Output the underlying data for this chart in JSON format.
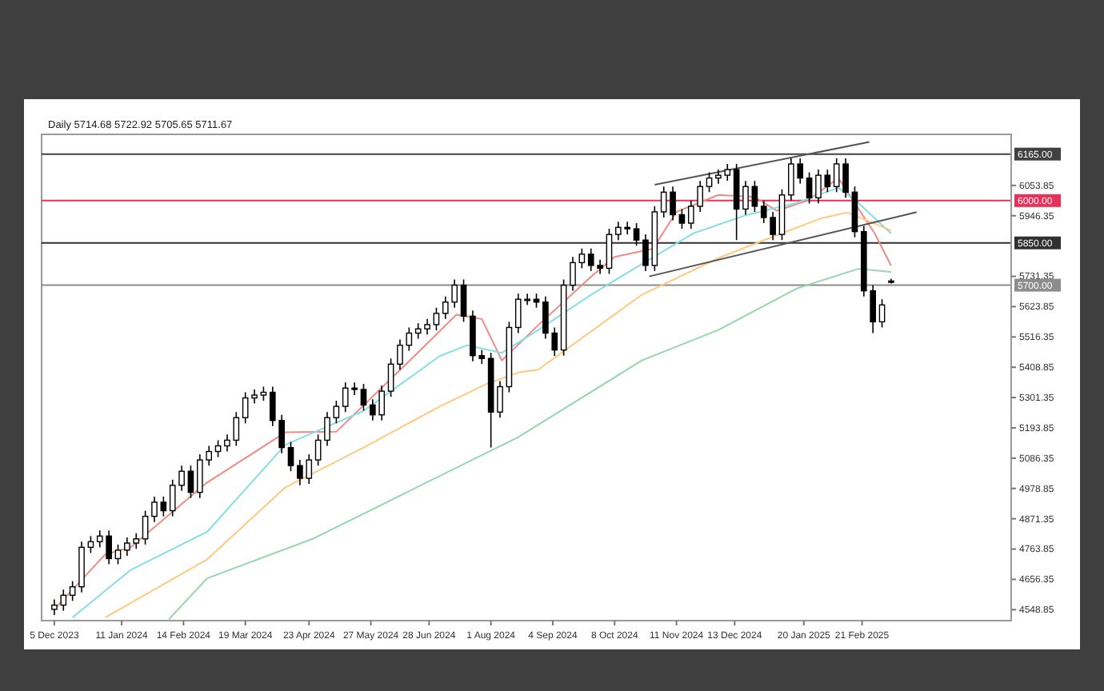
{
  "chart_data": {
    "type": "candlestick",
    "title": "Daily 5714.68 5722.92 5705.65 5711.67",
    "color": "#000000",
    "x": [
      "2023-12-05",
      "2023-12-10",
      "2023-12-15",
      "2023-12-20",
      "2023-12-25",
      "2023-12-30",
      "2024-01-04",
      "2024-01-09",
      "2024-01-14",
      "2024-01-19",
      "2024-01-24",
      "2024-01-29",
      "2024-02-03",
      "2024-02-08",
      "2024-02-13",
      "2024-02-18",
      "2024-02-23",
      "2024-02-28",
      "2024-03-04",
      "2024-03-09",
      "2024-03-14",
      "2024-03-19",
      "2024-03-24",
      "2024-03-29",
      "2024-04-03",
      "2024-04-08",
      "2024-04-13",
      "2024-04-18",
      "2024-04-23",
      "2024-04-28",
      "2024-05-03",
      "2024-05-08",
      "2024-05-13",
      "2024-05-18",
      "2024-05-23",
      "2024-05-28",
      "2024-06-02",
      "2024-06-07",
      "2024-06-12",
      "2024-06-17",
      "2024-06-22",
      "2024-06-27",
      "2024-07-02",
      "2024-07-07",
      "2024-07-12",
      "2024-07-17",
      "2024-07-22",
      "2024-07-27",
      "2024-08-01",
      "2024-08-06",
      "2024-08-11",
      "2024-08-16",
      "2024-08-21",
      "2024-08-26",
      "2024-08-31",
      "2024-09-05",
      "2024-09-10",
      "2024-09-15",
      "2024-09-20",
      "2024-09-25",
      "2024-09-30",
      "2024-10-05",
      "2024-10-10",
      "2024-10-15",
      "2024-10-20",
      "2024-10-25",
      "2024-10-30",
      "2024-11-04",
      "2024-11-09",
      "2024-11-14",
      "2024-11-19",
      "2024-11-24",
      "2024-11-29",
      "2024-12-04",
      "2024-12-09",
      "2024-12-14",
      "2024-12-19",
      "2024-12-24",
      "2024-12-29",
      "2025-01-03",
      "2025-01-08",
      "2025-01-13",
      "2025-01-18",
      "2025-01-23",
      "2025-01-28",
      "2025-02-02",
      "2025-02-07",
      "2025-02-12",
      "2025-02-17",
      "2025-02-22",
      "2025-02-27",
      "2025-03-04",
      "2025-03-09"
    ],
    "ohlc": [
      [
        4550,
        4585,
        4530,
        4565
      ],
      [
        4565,
        4620,
        4545,
        4600
      ],
      [
        4600,
        4650,
        4580,
        4630
      ],
      [
        4630,
        4790,
        4610,
        4770
      ],
      [
        4770,
        4810,
        4750,
        4790
      ],
      [
        4790,
        4830,
        4770,
        4810
      ],
      [
        4810,
        4830,
        4710,
        4730
      ],
      [
        4730,
        4780,
        4710,
        4760
      ],
      [
        4760,
        4805,
        4740,
        4785
      ],
      [
        4785,
        4820,
        4765,
        4800
      ],
      [
        4800,
        4900,
        4780,
        4880
      ],
      [
        4880,
        4950,
        4860,
        4930
      ],
      [
        4930,
        4950,
        4880,
        4900
      ],
      [
        4900,
        5010,
        4880,
        4990
      ],
      [
        4990,
        5060,
        4970,
        5040
      ],
      [
        5040,
        5060,
        4945,
        4965
      ],
      [
        4965,
        5100,
        4945,
        5080
      ],
      [
        5080,
        5130,
        5060,
        5110
      ],
      [
        5110,
        5150,
        5090,
        5130
      ],
      [
        5130,
        5170,
        5110,
        5150
      ],
      [
        5150,
        5250,
        5130,
        5230
      ],
      [
        5230,
        5320,
        5210,
        5300
      ],
      [
        5300,
        5330,
        5280,
        5310
      ],
      [
        5310,
        5340,
        5290,
        5320
      ],
      [
        5320,
        5340,
        5200,
        5220
      ],
      [
        5220,
        5240,
        5104,
        5124
      ],
      [
        5124,
        5144,
        5040,
        5060
      ],
      [
        5060,
        5080,
        4990,
        5015
      ],
      [
        5015,
        5100,
        4995,
        5080
      ],
      [
        5080,
        5170,
        5060,
        5150
      ],
      [
        5150,
        5250,
        5130,
        5230
      ],
      [
        5230,
        5290,
        5210,
        5270
      ],
      [
        5270,
        5355,
        5250,
        5335
      ],
      [
        5335,
        5355,
        5310,
        5330
      ],
      [
        5330,
        5350,
        5255,
        5275
      ],
      [
        5275,
        5295,
        5220,
        5240
      ],
      [
        5240,
        5344,
        5220,
        5324
      ],
      [
        5324,
        5440,
        5304,
        5420
      ],
      [
        5420,
        5507,
        5400,
        5487
      ],
      [
        5487,
        5550,
        5467,
        5530
      ],
      [
        5530,
        5565,
        5510,
        5545
      ],
      [
        5545,
        5580,
        5525,
        5560
      ],
      [
        5560,
        5620,
        5540,
        5600
      ],
      [
        5600,
        5660,
        5580,
        5640
      ],
      [
        5640,
        5720,
        5620,
        5700
      ],
      [
        5700,
        5720,
        5570,
        5590
      ],
      [
        5590,
        5610,
        5430,
        5450
      ],
      [
        5450,
        5470,
        5420,
        5440
      ],
      [
        5440,
        5460,
        5124,
        5250
      ],
      [
        5250,
        5360,
        5230,
        5340
      ],
      [
        5340,
        5570,
        5320,
        5550
      ],
      [
        5550,
        5670,
        5530,
        5650
      ],
      [
        5650,
        5670,
        5630,
        5650
      ],
      [
        5650,
        5670,
        5620,
        5640
      ],
      [
        5640,
        5660,
        5510,
        5530
      ],
      [
        5530,
        5550,
        5449,
        5470
      ],
      [
        5470,
        5720,
        5450,
        5700
      ],
      [
        5700,
        5800,
        5680,
        5780
      ],
      [
        5780,
        5830,
        5760,
        5810
      ],
      [
        5810,
        5830,
        5750,
        5770
      ],
      [
        5770,
        5790,
        5740,
        5760
      ],
      [
        5760,
        5900,
        5740,
        5880
      ],
      [
        5880,
        5925,
        5860,
        5905
      ],
      [
        5905,
        5925,
        5880,
        5900
      ],
      [
        5900,
        5920,
        5840,
        5860
      ],
      [
        5860,
        5880,
        5750,
        5770
      ],
      [
        5770,
        5980,
        5750,
        5960
      ],
      [
        5960,
        6050,
        5940,
        6030
      ],
      [
        6030,
        6050,
        5930,
        5950
      ],
      [
        5950,
        5970,
        5900,
        5920
      ],
      [
        5920,
        6000,
        5900,
        5980
      ],
      [
        5980,
        6070,
        5960,
        6050
      ],
      [
        6050,
        6100,
        6030,
        6080
      ],
      [
        6080,
        6110,
        6060,
        6090
      ],
      [
        6090,
        6130,
        6070,
        6110
      ],
      [
        6110,
        6130,
        5860,
        5970
      ],
      [
        5970,
        6070,
        5950,
        6050
      ],
      [
        6050,
        6070,
        5960,
        5980
      ],
      [
        5980,
        6000,
        5920,
        5940
      ],
      [
        5940,
        5960,
        5860,
        5880
      ],
      [
        5880,
        6040,
        5860,
        6020
      ],
      [
        6020,
        6150,
        6000,
        6130
      ],
      [
        6130,
        6150,
        6060,
        6080
      ],
      [
        6080,
        6100,
        5990,
        6010
      ],
      [
        6010,
        6110,
        5990,
        6090
      ],
      [
        6090,
        6110,
        6030,
        6050
      ],
      [
        6050,
        6150,
        6030,
        6130
      ],
      [
        6130,
        6150,
        6010,
        6030
      ],
      [
        6030,
        6050,
        5870,
        5890
      ],
      [
        5890,
        5910,
        5660,
        5680
      ],
      [
        5680,
        5700,
        5530,
        5570
      ],
      [
        5570,
        5650,
        5550,
        5630
      ],
      [
        5714.68,
        5722.92,
        5705.65,
        5711.67
      ]
    ],
    "series": [
      {
        "type": "line",
        "color": "#f08a84",
        "x": [
          "2023-12-05",
          "2024-01-02",
          "2024-01-16",
          "2024-02-27",
          "2024-04-10",
          "2024-05-08",
          "2024-06-20",
          "2024-07-13",
          "2024-07-27",
          "2024-08-07",
          "2024-08-27",
          "2024-09-25",
          "2024-10-08",
          "2024-10-29",
          "2024-11-11",
          "2024-12-04",
          "2024-12-24",
          "2025-01-05",
          "2025-01-22",
          "2025-02-08",
          "2025-02-28",
          "2025-03-09"
        ],
        "values": [
          4550,
          4745,
          4770,
          5000,
          5178,
          5180,
          5449,
          5595,
          5580,
          5433,
          5558,
          5730,
          5800,
          5829,
          5960,
          6020,
          6013,
          5964,
          6000,
          6080,
          5883,
          5769
        ]
      },
      {
        "type": "line",
        "color": "#86dde6",
        "x": [
          "2023-12-15",
          "2024-01-16",
          "2024-02-27",
          "2024-04-10",
          "2024-05-23",
          "2024-07-04",
          "2024-07-19",
          "2024-08-07",
          "2024-08-27",
          "2024-09-25",
          "2024-10-23",
          "2024-11-20",
          "2024-12-19",
          "2025-01-16",
          "2025-02-08",
          "2025-02-19",
          "2025-03-09"
        ],
        "values": [
          4521,
          4690,
          4825,
          5134,
          5254,
          5449,
          5487,
          5460,
          5541,
          5666,
          5775,
          5883,
          5948,
          5992,
          6046,
          5992,
          5883
        ]
      },
      {
        "type": "line",
        "color": "#ffc97f",
        "x": [
          "2024-01-02",
          "2024-02-27",
          "2024-04-10",
          "2024-05-23",
          "2024-07-04",
          "2024-07-30",
          "2024-08-16",
          "2024-08-27",
          "2024-10-23",
          "2024-12-04",
          "2025-01-01",
          "2025-01-30",
          "2025-02-13",
          "2025-03-09"
        ],
        "values": [
          4521,
          4727,
          4983,
          5124,
          5270,
          5351,
          5390,
          5400,
          5666,
          5796,
          5867,
          5938,
          5958,
          5894
        ]
      },
      {
        "type": "line",
        "color": "#94d6ae",
        "x": [
          "2024-02-06",
          "2024-02-27",
          "2024-04-25",
          "2024-08-16",
          "2024-10-23",
          "2024-12-04",
          "2025-01-16",
          "2025-02-19",
          "2025-03-09"
        ],
        "values": [
          4515,
          4660,
          4800,
          5161,
          5433,
          5541,
          5688,
          5758,
          5747
        ]
      },
      {
        "type": "line",
        "color": "#555555",
        "x": [
          "2024-10-30",
          "2025-02-25"
        ],
        "values": [
          6056,
          6208
        ]
      },
      {
        "type": "line",
        "color": "#555555",
        "x": [
          "2024-10-27",
          "2025-03-23"
        ],
        "values": [
          5731,
          5959
        ]
      }
    ],
    "ref_lines": [
      {
        "axis": "y",
        "value": 6165,
        "label": "6165.00",
        "color": "#404040"
      },
      {
        "axis": "y",
        "value": 6000,
        "label": "6000.00",
        "color": "#e8305a"
      },
      {
        "axis": "y",
        "value": 5850,
        "label": "5850.00",
        "color": "#303030"
      },
      {
        "axis": "y",
        "value": 5700,
        "label": "5700.00",
        "color": "#8c8c8c"
      }
    ],
    "xlim": [
      "2023-11-28",
      "2025-05-14"
    ],
    "xticks": [
      {
        "value": "2023-12-05",
        "label": "5 Dec 2023"
      },
      {
        "value": "2024-01-11",
        "label": "11 Jan 2024"
      },
      {
        "value": "2024-02-14",
        "label": "14 Feb 2024"
      },
      {
        "value": "2024-03-19",
        "label": "19 Mar 2024"
      },
      {
        "value": "2024-04-23",
        "label": "23 Apr 2024"
      },
      {
        "value": "2024-05-27",
        "label": "27 May 2024"
      },
      {
        "value": "2024-06-28",
        "label": "28 Jun 2024"
      },
      {
        "value": "2024-08-01",
        "label": "1 Aug 2024"
      },
      {
        "value": "2024-09-04",
        "label": "4 Sep 2024"
      },
      {
        "value": "2024-10-08",
        "label": "8 Oct 2024"
      },
      {
        "value": "2024-11-11",
        "label": "11 Nov 2024"
      },
      {
        "value": "2024-12-13",
        "label": "13 Dec 2024"
      },
      {
        "value": "2025-01-20",
        "label": "20 Jan 2025"
      },
      {
        "value": "2025-02-21",
        "label": "21 Feb 2025"
      }
    ],
    "ylim": [
      4510,
      6235
    ],
    "yticks": [
      4548.85,
      4656.35,
      4763.85,
      4871.35,
      4978.85,
      5086.35,
      5193.85,
      5301.35,
      5408.85,
      5516.35,
      5623.85,
      5731.35,
      5946.35,
      6053.85
    ]
  }
}
